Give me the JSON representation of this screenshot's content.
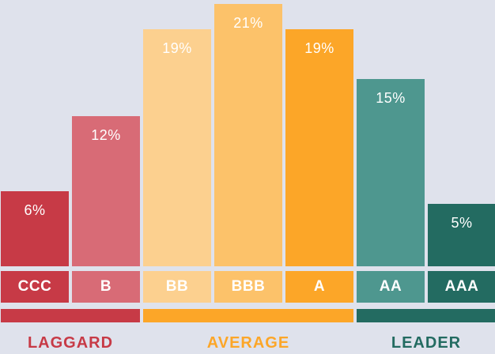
{
  "chart_data": {
    "type": "bar",
    "title": "",
    "xlabel": "",
    "ylabel": "",
    "ylim": [
      0,
      21
    ],
    "categories": [
      "CCC",
      "B",
      "BB",
      "BBB",
      "A",
      "AA",
      "AAA"
    ],
    "values": [
      6,
      12,
      19,
      21,
      19,
      15,
      5
    ],
    "value_labels": [
      "6%",
      "12%",
      "19%",
      "21%",
      "19%",
      "15%",
      "5%"
    ],
    "colors": [
      "#c73a46",
      "#d86b76",
      "#fcd08f",
      "#fcc26a",
      "#fca628",
      "#4e978f",
      "#236b61"
    ],
    "groups": [
      {
        "label": "LAGGARD",
        "categories": [
          "CCC",
          "B"
        ],
        "color": "#c73a46"
      },
      {
        "label": "AVERAGE",
        "categories": [
          "BB",
          "BBB",
          "A"
        ],
        "color": "#fca628"
      },
      {
        "label": "LEADER",
        "categories": [
          "AA",
          "AAA"
        ],
        "color": "#236b61"
      }
    ]
  }
}
